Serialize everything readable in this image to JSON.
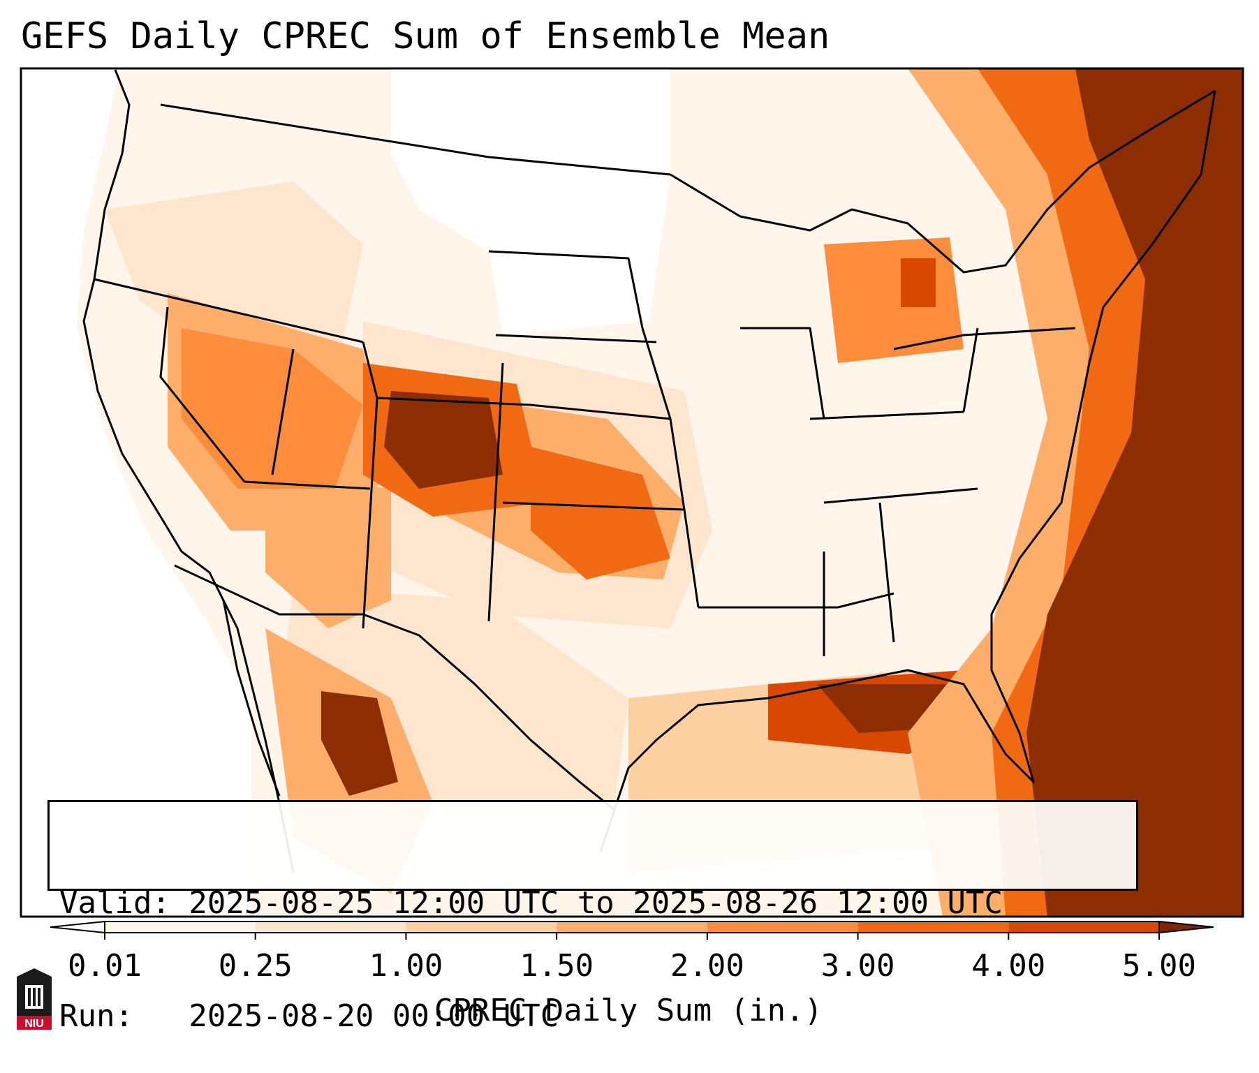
{
  "title": "GEFS Daily CPREC Sum of Ensemble Mean",
  "info": {
    "valid_line": "Valid: 2025-08-25 12:00 UTC to 2025-08-26 12:00 UTC",
    "run_line": "Run:   2025-08-20 00:00 UTC"
  },
  "colorbar": {
    "label": "CPREC Daily Sum (in.)",
    "ticks": [
      "0.01",
      "0.25",
      "1.00",
      "1.50",
      "2.00",
      "3.00",
      "4.00",
      "5.00"
    ],
    "colors": [
      "#fff5eb",
      "#fee6ce",
      "#fdd0a2",
      "#fdae6b",
      "#fd8d3c",
      "#f16913",
      "#d94801",
      "#8c2d04"
    ],
    "under_color": "#ffffff",
    "over_color": "#7f2704"
  },
  "logo": {
    "text": "NIU",
    "colors": {
      "dark": "#1a1a1a",
      "red": "#c8102e"
    }
  }
}
